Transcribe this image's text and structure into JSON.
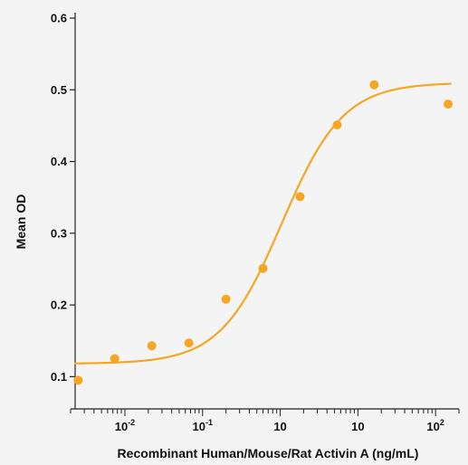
{
  "chart_data": {
    "type": "scatter",
    "title": "",
    "xlabel": "Recombinant Human/Mouse/Rat Activin A (ng/mL)",
    "ylabel": "Mean OD",
    "x_scale": "log",
    "xlim": [
      0.002,
      200
    ],
    "ylim": [
      0.05,
      0.6
    ],
    "y_ticks": [
      "0.1",
      "0.2",
      "0.3",
      "0.4",
      "0.5",
      "0.6"
    ],
    "x_tick_labels": [
      {
        "base": "10",
        "exp": "-2",
        "value": 0.01
      },
      {
        "base": "10",
        "exp": "-1",
        "value": 0.1
      },
      {
        "base": "10",
        "exp": "",
        "value": 1
      },
      {
        "base": "10",
        "exp": "",
        "value": 10
      },
      {
        "base": "10",
        "exp": "2",
        "value": 100
      }
    ],
    "x_tick_text": [
      "10-2",
      "10-1",
      "100",
      "101",
      "102"
    ],
    "grid": false,
    "legend": "none",
    "series": [
      {
        "color": "#f5a623",
        "x": [
          0.0025,
          0.0074,
          0.0222,
          0.0667,
          0.2,
          0.6,
          1.8,
          5.4,
          16.2,
          145
        ],
        "y": [
          0.095,
          0.125,
          0.143,
          0.147,
          0.208,
          0.251,
          0.351,
          0.451,
          0.507,
          0.48
        ]
      }
    ],
    "fit_curve": {
      "type": "4PL",
      "color": "#f5a623",
      "bottom": 0.118,
      "top": 0.51,
      "ec50": 1.05,
      "hill": 1.1
    }
  }
}
